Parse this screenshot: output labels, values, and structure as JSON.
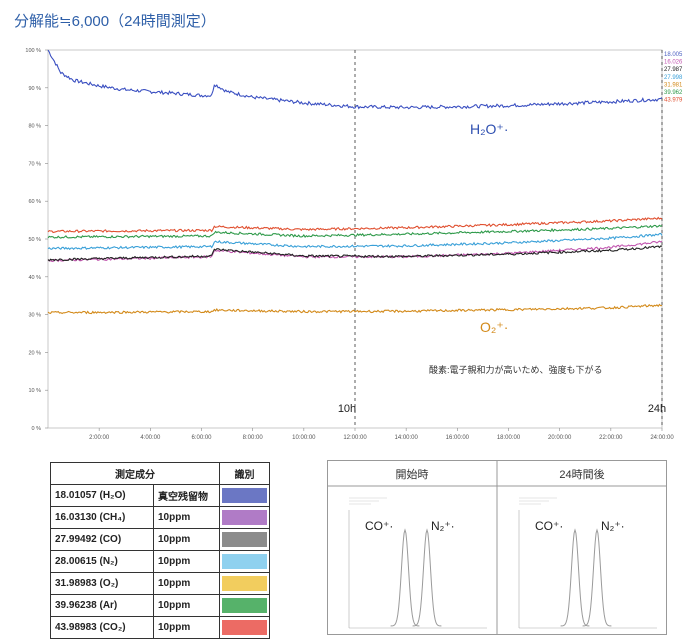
{
  "title": "分解能≒6,000（24時間測定）",
  "main_chart": {
    "y_ticks": [
      "0 %",
      "10 %",
      "20 %",
      "30 %",
      "40 %",
      "50 %",
      "60 %",
      "70 %",
      "80 %",
      "90 %",
      "100 %"
    ],
    "x_ticks": [
      "2:00:00",
      "4:00:00",
      "6:00:00",
      "8:00:00",
      "10:00:00",
      "12:00:00",
      "14:00:00",
      "16:00:00",
      "18:00:00",
      "20:00:00",
      "22:00:00",
      "24:00:00"
    ],
    "markers": [
      "10h",
      "24h"
    ],
    "h2o_label": "H₂O⁺·",
    "o2_label": "O₂⁺·",
    "note": "酸素:電子親和力が高いため、強度も下がる",
    "right_values": [
      {
        "text": "18.005",
        "color": "#4a5fc1"
      },
      {
        "text": "16.026",
        "color": "#c257b0"
      },
      {
        "text": "27.987",
        "color": "#222222"
      },
      {
        "text": "27.998",
        "color": "#3aa0d8"
      },
      {
        "text": "31.981",
        "color": "#d38a1a"
      },
      {
        "text": "39.962",
        "color": "#2f9a4a"
      },
      {
        "text": "43.979",
        "color": "#e05030"
      }
    ]
  },
  "chart_data": [
    {
      "type": "line",
      "xlabel": "",
      "ylabel": "",
      "xlim": [
        0,
        24
      ],
      "ylim": [
        0,
        100
      ],
      "grid": false,
      "series": [
        {
          "color": "#3a4fc1",
          "x": [
            0,
            0.5,
            1,
            2,
            3,
            4,
            5,
            6,
            6.4,
            6.5,
            7,
            8,
            10,
            12,
            14,
            16,
            18,
            20,
            22,
            24
          ],
          "values": [
            100,
            94,
            92,
            90.5,
            89.5,
            89,
            88.5,
            88,
            88,
            91,
            89,
            87.5,
            86,
            85,
            84.8,
            85,
            85.3,
            85.8,
            86.3,
            87
          ]
        },
        {
          "color": "#e05030",
          "x": [
            0,
            6.4,
            6.5,
            10,
            14,
            18,
            22,
            24
          ],
          "values": [
            52,
            52.3,
            53.3,
            52.5,
            53,
            53.8,
            54.8,
            55.5
          ]
        },
        {
          "color": "#2f9a4a",
          "x": [
            0,
            6.4,
            6.5,
            10,
            14,
            18,
            22,
            24
          ],
          "values": [
            50.5,
            50.8,
            51.8,
            50.8,
            51.3,
            52,
            52.8,
            53.5
          ]
        },
        {
          "color": "#3aa0d8",
          "x": [
            0,
            6.4,
            6.5,
            10,
            14,
            18,
            22,
            24
          ],
          "values": [
            47.5,
            48,
            49.3,
            48,
            48.2,
            49,
            50.2,
            51.2
          ]
        },
        {
          "color": "#c257b0",
          "x": [
            0,
            6.4,
            6.5,
            10,
            14,
            18,
            22,
            24
          ],
          "values": [
            44.3,
            45.3,
            47,
            45.3,
            45.3,
            46.2,
            47.8,
            49.3
          ]
        },
        {
          "color": "#222222",
          "x": [
            0,
            6.4,
            6.5,
            10,
            14,
            18,
            22,
            24
          ],
          "values": [
            44.5,
            45.5,
            47.3,
            45.5,
            45.4,
            46,
            47,
            48
          ]
        },
        {
          "color": "#d38a1a",
          "x": [
            0,
            6.4,
            6.5,
            10,
            14,
            18,
            22,
            24
          ],
          "values": [
            30.5,
            30.8,
            31.2,
            30.8,
            30.9,
            31.3,
            31.8,
            32.5
          ]
        }
      ]
    },
    {
      "type": "table",
      "headers": [
        "測定成分",
        "識別"
      ],
      "rows": [
        {
          "component": "18.01057 (H₂O)",
          "note": "真空残留物",
          "color": "#6b77c4"
        },
        {
          "component": "16.03130 (CH₄)",
          "note": "10ppm",
          "color": "#b07bc6"
        },
        {
          "component": "27.99492 (CO)",
          "note": "10ppm",
          "color": "#8c8c8c"
        },
        {
          "component": "28.00615 (N₂)",
          "note": "10ppm",
          "color": "#8fd1ef"
        },
        {
          "component": "31.98983 (O₂)",
          "note": "10ppm",
          "color": "#f2cd5e"
        },
        {
          "component": "39.96238 (Ar)",
          "note": "10ppm",
          "color": "#56b26a"
        },
        {
          "component": "43.98983 (CO₂)",
          "note": "10ppm",
          "color": "#ec6b64"
        }
      ]
    },
    {
      "type": "line",
      "panels": [
        {
          "title": "開始時",
          "peaks": [
            "CO⁺·",
            "N₂⁺·"
          ]
        },
        {
          "title": "24時間後",
          "peaks": [
            "CO⁺·",
            "N₂⁺·"
          ]
        }
      ]
    }
  ]
}
